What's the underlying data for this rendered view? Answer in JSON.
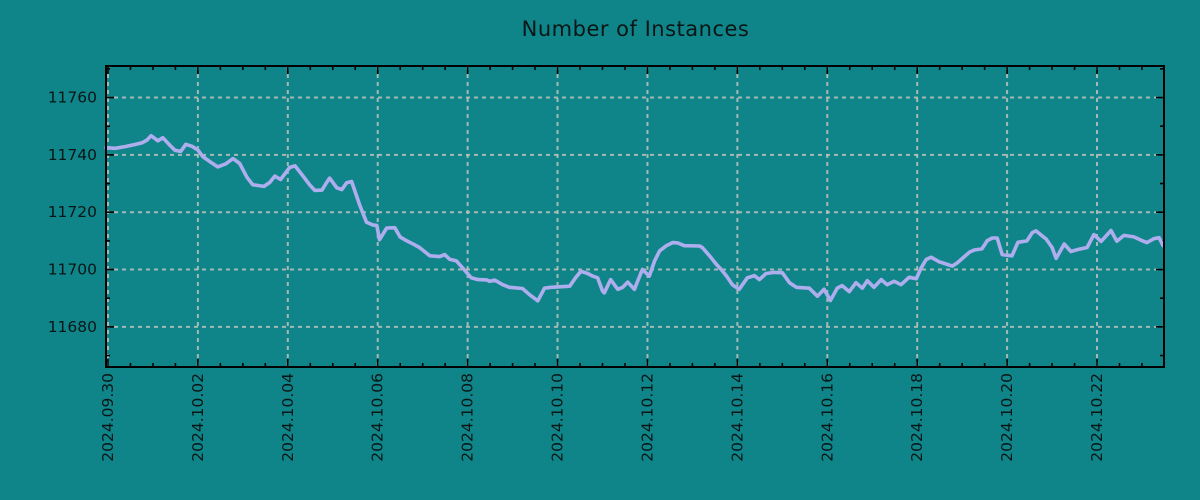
{
  "chart_data": {
    "type": "line",
    "title": "Number of Instances",
    "legend": "none",
    "grid": "dashed",
    "x_axis": {
      "tick_labels": [
        "2024.09.30",
        "2024.10.02",
        "2024.10.04",
        "2024.10.06",
        "2024.10.08",
        "2024.10.10",
        "2024.10.12",
        "2024.10.14",
        "2024.10.16",
        "2024.10.18",
        "2024.10.20",
        "2024.10.22"
      ],
      "tick_days": [
        0,
        2,
        4,
        6,
        8,
        10,
        12,
        14,
        16,
        18,
        20,
        22
      ],
      "minor_step_days": 0.5,
      "minor_max_day": 23.0,
      "xlim_days": [
        -0.044,
        23.49
      ]
    },
    "y_axis": {
      "ticks": [
        11680,
        11700,
        11720,
        11740,
        11760
      ],
      "tick_labels": [
        "11680",
        "11700",
        "11720",
        "11740",
        "11760"
      ],
      "minor_ticks": [
        11670,
        11690,
        11710,
        11730,
        11750,
        11770
      ],
      "ylim": [
        11666,
        11771
      ]
    },
    "colors": {
      "background": "#108589",
      "grid": "#c0c2c0",
      "axis": "#000000",
      "text": "#081616",
      "line": "#aeadee"
    },
    "series": [
      {
        "name": "instances",
        "color": "#aeadee",
        "points": [
          [
            -0.04,
            11742.5
          ],
          [
            0.16,
            11742.3
          ],
          [
            0.38,
            11742.9
          ],
          [
            0.6,
            11743.6
          ],
          [
            0.76,
            11744.2
          ],
          [
            0.87,
            11745.2
          ],
          [
            0.96,
            11746.7
          ],
          [
            1.11,
            11744.9
          ],
          [
            1.22,
            11746.0
          ],
          [
            1.38,
            11743.3
          ],
          [
            1.49,
            11741.6
          ],
          [
            1.62,
            11741.2
          ],
          [
            1.73,
            11743.7
          ],
          [
            1.87,
            11743.0
          ],
          [
            2.0,
            11741.7
          ],
          [
            2.11,
            11739.4
          ],
          [
            2.27,
            11737.6
          ],
          [
            2.44,
            11735.8
          ],
          [
            2.62,
            11736.9
          ],
          [
            2.78,
            11738.7
          ],
          [
            2.93,
            11737.0
          ],
          [
            3.09,
            11732.2
          ],
          [
            3.22,
            11729.6
          ],
          [
            3.47,
            11729.0
          ],
          [
            3.6,
            11730.4
          ],
          [
            3.71,
            11732.6
          ],
          [
            3.84,
            11731.4
          ],
          [
            4.04,
            11735.6
          ],
          [
            4.16,
            11736.2
          ],
          [
            4.33,
            11732.8
          ],
          [
            4.49,
            11729.5
          ],
          [
            4.6,
            11727.6
          ],
          [
            4.76,
            11727.7
          ],
          [
            4.87,
            11730.5
          ],
          [
            4.93,
            11731.9
          ],
          [
            5.09,
            11728.5
          ],
          [
            5.2,
            11727.9
          ],
          [
            5.31,
            11730.3
          ],
          [
            5.42,
            11730.7
          ],
          [
            5.6,
            11722.5
          ],
          [
            5.75,
            11716.5
          ],
          [
            5.9,
            11715.5
          ],
          [
            5.98,
            11715.4
          ],
          [
            6.04,
            11710.4
          ],
          [
            6.2,
            11714.5
          ],
          [
            6.38,
            11714.6
          ],
          [
            6.5,
            11711.3
          ],
          [
            6.65,
            11710.0
          ],
          [
            6.8,
            11708.8
          ],
          [
            6.93,
            11707.7
          ],
          [
            7.16,
            11704.8
          ],
          [
            7.38,
            11704.5
          ],
          [
            7.49,
            11705.2
          ],
          [
            7.6,
            11703.6
          ],
          [
            7.75,
            11703.0
          ],
          [
            7.9,
            11700.4
          ],
          [
            8.08,
            11697.1
          ],
          [
            8.23,
            11696.5
          ],
          [
            8.42,
            11696.4
          ],
          [
            8.49,
            11695.9
          ],
          [
            8.6,
            11696.3
          ],
          [
            8.78,
            11694.7
          ],
          [
            8.93,
            11693.8
          ],
          [
            9.22,
            11693.4
          ],
          [
            9.38,
            11691.2
          ],
          [
            9.56,
            11689.1
          ],
          [
            9.71,
            11693.5
          ],
          [
            9.85,
            11693.8
          ],
          [
            10.1,
            11694.0
          ],
          [
            10.27,
            11694.2
          ],
          [
            10.4,
            11697.1
          ],
          [
            10.52,
            11699.4
          ],
          [
            10.67,
            11698.6
          ],
          [
            10.78,
            11697.7
          ],
          [
            10.89,
            11697.1
          ],
          [
            11.0,
            11692.5
          ],
          [
            11.04,
            11691.9
          ],
          [
            11.18,
            11696.5
          ],
          [
            11.34,
            11693.1
          ],
          [
            11.45,
            11693.8
          ],
          [
            11.56,
            11695.6
          ],
          [
            11.71,
            11693.1
          ],
          [
            11.87,
            11699.4
          ],
          [
            11.89,
            11700.0
          ],
          [
            12.04,
            11697.7
          ],
          [
            12.16,
            11703.0
          ],
          [
            12.27,
            11706.5
          ],
          [
            12.42,
            11708.3
          ],
          [
            12.56,
            11709.4
          ],
          [
            12.67,
            11709.3
          ],
          [
            12.82,
            11708.3
          ],
          [
            13.16,
            11708.2
          ],
          [
            13.22,
            11707.7
          ],
          [
            13.38,
            11704.8
          ],
          [
            13.53,
            11701.9
          ],
          [
            13.64,
            11700.0
          ],
          [
            13.76,
            11697.7
          ],
          [
            13.89,
            11694.7
          ],
          [
            14.04,
            11693.1
          ],
          [
            14.22,
            11697.1
          ],
          [
            14.38,
            11697.9
          ],
          [
            14.49,
            11696.5
          ],
          [
            14.64,
            11698.6
          ],
          [
            14.82,
            11699.0
          ],
          [
            15.0,
            11698.9
          ],
          [
            15.16,
            11695.4
          ],
          [
            15.31,
            11693.8
          ],
          [
            15.6,
            11693.5
          ],
          [
            15.78,
            11690.7
          ],
          [
            15.93,
            11693.1
          ],
          [
            16.07,
            11689.2
          ],
          [
            16.22,
            11693.5
          ],
          [
            16.33,
            11694.4
          ],
          [
            16.49,
            11692.3
          ],
          [
            16.64,
            11695.4
          ],
          [
            16.78,
            11693.5
          ],
          [
            16.89,
            11696.1
          ],
          [
            17.04,
            11693.8
          ],
          [
            17.2,
            11696.5
          ],
          [
            17.33,
            11694.7
          ],
          [
            17.49,
            11695.9
          ],
          [
            17.64,
            11694.7
          ],
          [
            17.82,
            11697.3
          ],
          [
            17.98,
            11696.8
          ],
          [
            18.09,
            11700.6
          ],
          [
            18.2,
            11703.5
          ],
          [
            18.31,
            11704.3
          ],
          [
            18.49,
            11702.7
          ],
          [
            18.67,
            11701.8
          ],
          [
            18.78,
            11701.2
          ],
          [
            18.89,
            11702.3
          ],
          [
            19.0,
            11703.8
          ],
          [
            19.16,
            11706.0
          ],
          [
            19.27,
            11706.8
          ],
          [
            19.44,
            11707.2
          ],
          [
            19.56,
            11710.1
          ],
          [
            19.67,
            11711.0
          ],
          [
            19.78,
            11711.0
          ],
          [
            19.89,
            11705.2
          ],
          [
            20.11,
            11704.8
          ],
          [
            20.24,
            11709.5
          ],
          [
            20.44,
            11710.0
          ],
          [
            20.56,
            11712.9
          ],
          [
            20.64,
            11713.5
          ],
          [
            20.87,
            11710.6
          ],
          [
            21.0,
            11707.7
          ],
          [
            21.09,
            11703.9
          ],
          [
            21.27,
            11708.9
          ],
          [
            21.42,
            11706.3
          ],
          [
            21.6,
            11707.1
          ],
          [
            21.78,
            11707.7
          ],
          [
            21.93,
            11712.2
          ],
          [
            22.09,
            11709.8
          ],
          [
            22.31,
            11713.6
          ],
          [
            22.44,
            11709.9
          ],
          [
            22.6,
            11711.9
          ],
          [
            22.82,
            11711.4
          ],
          [
            23.0,
            11710.1
          ],
          [
            23.11,
            11709.4
          ],
          [
            23.27,
            11710.8
          ],
          [
            23.38,
            11711.1
          ],
          [
            23.47,
            11708.3
          ]
        ]
      }
    ]
  }
}
